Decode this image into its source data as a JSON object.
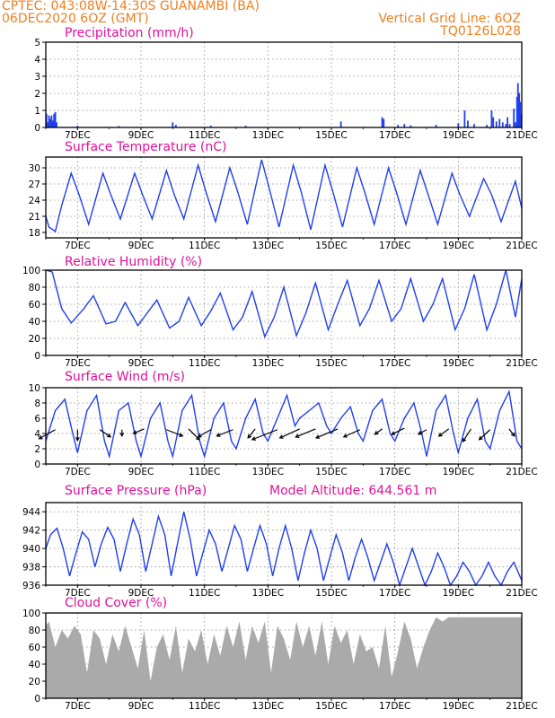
{
  "header": {
    "org_location": "CPTEC:   043:08W-14:30S   GUANAMBI (BA)",
    "datetime": "06DEC2020 6OZ (GMT)",
    "grid_note": "Vertical Grid Line: 6OZ",
    "code": "TQ0126L028",
    "model_altitude": "Model Altitude: 644.561 m"
  },
  "x_tick_labels": [
    "7DEC",
    "9DEC",
    "11DEC",
    "13DEC",
    "15DEC",
    "17DEC",
    "19DEC",
    "21DEC"
  ],
  "colors": {
    "header": "#f07f1f",
    "title": "#e0109a",
    "series": "#1f3ff0",
    "cloud": "#aaaaaa"
  },
  "chart_data": [
    {
      "type": "bar",
      "title": "Precipitation (mm/h)",
      "ylim": [
        0,
        5
      ],
      "yticks": [
        "0",
        "1",
        "2",
        "3",
        "4",
        "5"
      ],
      "xlim_days": [
        0,
        15
      ],
      "points": [
        [
          0.02,
          0.8
        ],
        [
          0.06,
          0.3
        ],
        [
          0.1,
          0.7
        ],
        [
          0.14,
          0.5
        ],
        [
          0.18,
          0.7
        ],
        [
          0.22,
          0.4
        ],
        [
          0.26,
          0.8
        ],
        [
          0.3,
          0.9
        ],
        [
          0.34,
          0.3
        ],
        [
          1.0,
          0.1
        ],
        [
          2.3,
          0.08
        ],
        [
          4.0,
          0.3
        ],
        [
          4.1,
          0.15
        ],
        [
          5.2,
          0.1
        ],
        [
          6.3,
          0.1
        ],
        [
          9.3,
          0.35
        ],
        [
          10.6,
          0.6
        ],
        [
          10.65,
          0.5
        ],
        [
          11.1,
          0.15
        ],
        [
          11.3,
          0.2
        ],
        [
          11.5,
          0.12
        ],
        [
          12.3,
          0.15
        ],
        [
          13.0,
          0.25
        ],
        [
          13.2,
          1.0
        ],
        [
          13.3,
          0.4
        ],
        [
          13.5,
          0.2
        ],
        [
          13.9,
          0.15
        ],
        [
          14.05,
          1.0
        ],
        [
          14.1,
          0.6
        ],
        [
          14.2,
          0.35
        ],
        [
          14.3,
          0.5
        ],
        [
          14.4,
          0.3
        ],
        [
          14.5,
          0.2
        ],
        [
          14.55,
          0.6
        ],
        [
          14.62,
          0.2
        ],
        [
          14.75,
          1.1
        ],
        [
          14.8,
          0.3
        ],
        [
          14.85,
          1.8
        ],
        [
          14.88,
          2.6
        ],
        [
          14.92,
          2.0
        ],
        [
          14.95,
          1.5
        ],
        [
          14.98,
          0.8
        ]
      ]
    },
    {
      "type": "line",
      "title": "Surface Temperature (nC)",
      "ylim": [
        17,
        32
      ],
      "yticks": [
        "18",
        "21",
        "24",
        "27",
        "30"
      ],
      "series": [
        {
          "x": [
            0,
            0.1,
            0.3,
            0.5,
            0.8,
            1.05,
            1.35,
            1.8,
            2.05,
            2.35,
            2.8,
            3.05,
            3.35,
            3.8,
            4.05,
            4.35,
            4.8,
            5.05,
            5.35,
            5.8,
            6.05,
            6.35,
            6.8,
            7.05,
            7.35,
            7.8,
            8.05,
            8.35,
            8.8,
            9.05,
            9.35,
            9.8,
            10.05,
            10.35,
            10.8,
            11.05,
            11.35,
            11.8,
            12.05,
            12.35,
            12.8,
            13.05,
            13.35,
            13.8,
            14.05,
            14.35,
            14.8,
            15.0
          ],
          "y": [
            21,
            19,
            18.2,
            23,
            29,
            25,
            19.5,
            29,
            25,
            20.5,
            29,
            25,
            20.5,
            29.5,
            25,
            20.5,
            30.5,
            25.5,
            20,
            30,
            25.5,
            19.5,
            31.5,
            26,
            19,
            30.5,
            25.5,
            18.5,
            30.5,
            25.5,
            19,
            30,
            25.5,
            19.5,
            30,
            25.5,
            19.5,
            29.5,
            25,
            19.5,
            29,
            25,
            21,
            28,
            25,
            20,
            27.5,
            22.5
          ]
        }
      ]
    },
    {
      "type": "line",
      "title": "Relative Humidity (%)",
      "ylim": [
        0,
        100
      ],
      "yticks": [
        "0",
        "20",
        "40",
        "60",
        "80",
        "100"
      ],
      "series": [
        {
          "x": [
            0,
            0.2,
            0.5,
            0.8,
            1.2,
            1.5,
            1.9,
            2.2,
            2.5,
            2.9,
            3.2,
            3.5,
            3.9,
            4.2,
            4.5,
            4.9,
            5.2,
            5.5,
            5.9,
            6.2,
            6.5,
            6.9,
            7.2,
            7.5,
            7.9,
            8.2,
            8.5,
            8.9,
            9.2,
            9.5,
            9.9,
            10.2,
            10.5,
            10.9,
            11.2,
            11.5,
            11.9,
            12.2,
            12.5,
            12.9,
            13.2,
            13.5,
            13.9,
            14.2,
            14.5,
            14.8,
            15.0
          ],
          "y": [
            100,
            98,
            55,
            38,
            55,
            70,
            37,
            40,
            62,
            35,
            50,
            65,
            32,
            40,
            68,
            35,
            52,
            73,
            30,
            45,
            75,
            22,
            45,
            80,
            23,
            50,
            85,
            30,
            60,
            88,
            35,
            55,
            88,
            40,
            55,
            90,
            40,
            60,
            90,
            30,
            55,
            95,
            30,
            60,
            100,
            45,
            90
          ]
        }
      ]
    },
    {
      "type": "line",
      "title": "Surface Wind (m/s)",
      "ylim": [
        0,
        10
      ],
      "yticks": [
        "0",
        "2",
        "4",
        "6",
        "8",
        "10"
      ],
      "series": [
        {
          "x": [
            0,
            0.3,
            0.6,
            0.85,
            1.0,
            1.3,
            1.6,
            1.85,
            2.0,
            2.3,
            2.6,
            2.85,
            3.0,
            3.3,
            3.6,
            3.85,
            4.0,
            4.3,
            4.6,
            4.85,
            5.0,
            5.3,
            5.6,
            5.85,
            6.0,
            6.3,
            6.6,
            6.85,
            7.0,
            7.3,
            7.6,
            7.85,
            8.0,
            8.3,
            8.6,
            8.85,
            9.0,
            9.3,
            9.6,
            9.85,
            10.0,
            10.3,
            10.6,
            10.85,
            11.0,
            11.3,
            11.6,
            11.85,
            12.0,
            12.3,
            12.6,
            12.85,
            13.0,
            13.3,
            13.6,
            13.85,
            14.0,
            14.3,
            14.6,
            14.85,
            15.0
          ],
          "y": [
            3,
            7,
            8.5,
            4,
            1.5,
            7,
            9,
            3,
            1,
            7,
            8,
            3,
            1,
            6,
            8,
            3,
            1,
            7,
            9,
            3,
            1,
            6,
            8,
            3,
            2,
            6,
            8.5,
            4,
            3,
            6,
            9,
            5,
            6,
            7,
            8,
            5,
            4,
            6,
            7.5,
            4,
            3,
            7,
            8.5,
            4,
            3,
            6,
            8,
            4,
            1,
            7,
            9,
            4,
            1.5,
            6,
            8.5,
            3,
            2,
            7,
            9.5,
            3,
            2
          ]
        }
      ],
      "vectors": [
        [
          0.3,
          4.5,
          -18,
          10
        ],
        [
          1.0,
          4.5,
          0,
          12
        ],
        [
          1.7,
          4.5,
          12,
          8
        ],
        [
          2.4,
          4.5,
          0,
          7
        ],
        [
          3.1,
          4.6,
          -12,
          5
        ],
        [
          3.8,
          4.5,
          18,
          7
        ],
        [
          4.5,
          4.6,
          12,
          12
        ],
        [
          5.2,
          4.5,
          -14,
          8
        ],
        [
          5.9,
          4.5,
          -18,
          7
        ],
        [
          6.6,
          4.6,
          -8,
          10
        ],
        [
          7.3,
          4.5,
          -28,
          11
        ],
        [
          8.0,
          4.6,
          -22,
          10
        ],
        [
          8.5,
          4.6,
          -22,
          9
        ],
        [
          9.2,
          4.6,
          -24,
          10
        ],
        [
          9.9,
          4.5,
          -18,
          8
        ],
        [
          10.6,
          4.6,
          -8,
          6
        ],
        [
          11.3,
          4.7,
          -14,
          7
        ],
        [
          12.0,
          4.5,
          -9,
          5
        ],
        [
          12.7,
          4.6,
          -11,
          8
        ],
        [
          13.4,
          4.6,
          -9,
          14
        ],
        [
          14.0,
          4.5,
          -12,
          11
        ],
        [
          14.6,
          4.6,
          6,
          8
        ]
      ]
    },
    {
      "type": "line",
      "title": "Surface Pressure (hPa)",
      "ylim": [
        936,
        945
      ],
      "yticks": [
        "936",
        "938",
        "940",
        "942",
        "944"
      ],
      "series": [
        {
          "x": [
            0,
            0.15,
            0.35,
            0.55,
            0.75,
            0.95,
            1.15,
            1.35,
            1.55,
            1.75,
            1.95,
            2.15,
            2.35,
            2.55,
            2.75,
            2.95,
            3.15,
            3.35,
            3.55,
            3.75,
            3.95,
            4.15,
            4.35,
            4.55,
            4.75,
            4.95,
            5.15,
            5.35,
            5.55,
            5.75,
            5.95,
            6.15,
            6.35,
            6.55,
            6.75,
            6.95,
            7.15,
            7.35,
            7.55,
            7.75,
            7.95,
            8.15,
            8.35,
            8.55,
            8.75,
            8.95,
            9.15,
            9.35,
            9.55,
            9.75,
            9.95,
            10.15,
            10.35,
            10.55,
            10.75,
            10.95,
            11.15,
            11.35,
            11.55,
            11.75,
            11.95,
            12.15,
            12.35,
            12.55,
            12.75,
            12.95,
            13.15,
            13.35,
            13.55,
            13.75,
            13.95,
            14.15,
            14.35,
            14.55,
            14.75,
            15.0
          ],
          "y": [
            940,
            941.5,
            942.2,
            940,
            937,
            939.5,
            941.8,
            941,
            938,
            940.5,
            942.3,
            941,
            937.5,
            940.5,
            943.2,
            941.5,
            937.5,
            940.5,
            943.5,
            941.5,
            937,
            940.5,
            944,
            941,
            937,
            939.5,
            942,
            940.5,
            937.5,
            940,
            942.5,
            941,
            937.5,
            940,
            942.5,
            940.5,
            937,
            940,
            942.5,
            940,
            936.5,
            939.5,
            942,
            940,
            936.5,
            939,
            941.5,
            939.5,
            936.5,
            939,
            941,
            939,
            936.5,
            938.5,
            940.5,
            938.5,
            936,
            938,
            940,
            938,
            936,
            937.5,
            939.5,
            938,
            936,
            937,
            938.5,
            937.5,
            936,
            937,
            938.5,
            937,
            936,
            937.5,
            938.5,
            936.5
          ]
        }
      ]
    },
    {
      "type": "area",
      "title": "Cloud Cover (%)",
      "ylim": [
        0,
        100
      ],
      "yticks": [
        "0",
        "20",
        "40",
        "60",
        "80",
        "100"
      ],
      "series": [
        {
          "x": [
            0,
            0.1,
            0.3,
            0.5,
            0.7,
            0.9,
            1.1,
            1.3,
            1.5,
            1.7,
            1.9,
            2.1,
            2.3,
            2.5,
            2.7,
            2.9,
            3.1,
            3.3,
            3.5,
            3.7,
            3.9,
            4.1,
            4.3,
            4.5,
            4.7,
            4.9,
            5.1,
            5.3,
            5.5,
            5.7,
            5.9,
            6.1,
            6.3,
            6.5,
            6.7,
            6.9,
            7.1,
            7.3,
            7.5,
            7.7,
            7.9,
            8.1,
            8.3,
            8.5,
            8.7,
            8.9,
            9.1,
            9.3,
            9.5,
            9.7,
            9.9,
            10.1,
            10.3,
            10.5,
            10.7,
            10.9,
            11.1,
            11.3,
            11.5,
            11.7,
            11.9,
            12.1,
            12.3,
            12.5,
            12.7,
            12.9,
            13.1,
            13.3,
            13.5,
            13.7,
            13.9,
            14.1,
            14.3,
            14.5,
            14.7,
            14.9,
            15.0
          ],
          "y": [
            85,
            90,
            60,
            80,
            70,
            85,
            75,
            30,
            80,
            70,
            40,
            75,
            55,
            85,
            60,
            35,
            80,
            20,
            60,
            75,
            45,
            85,
            30,
            70,
            55,
            80,
            40,
            75,
            50,
            85,
            60,
            90,
            45,
            85,
            65,
            90,
            30,
            85,
            70,
            45,
            90,
            60,
            85,
            50,
            90,
            40,
            85,
            65,
            80,
            40,
            75,
            55,
            60,
            35,
            85,
            25,
            55,
            90,
            70,
            35,
            60,
            80,
            95,
            90,
            95,
            95,
            95,
            95,
            95,
            95,
            95,
            95,
            95,
            95,
            95,
            95,
            95
          ]
        }
      ]
    }
  ]
}
